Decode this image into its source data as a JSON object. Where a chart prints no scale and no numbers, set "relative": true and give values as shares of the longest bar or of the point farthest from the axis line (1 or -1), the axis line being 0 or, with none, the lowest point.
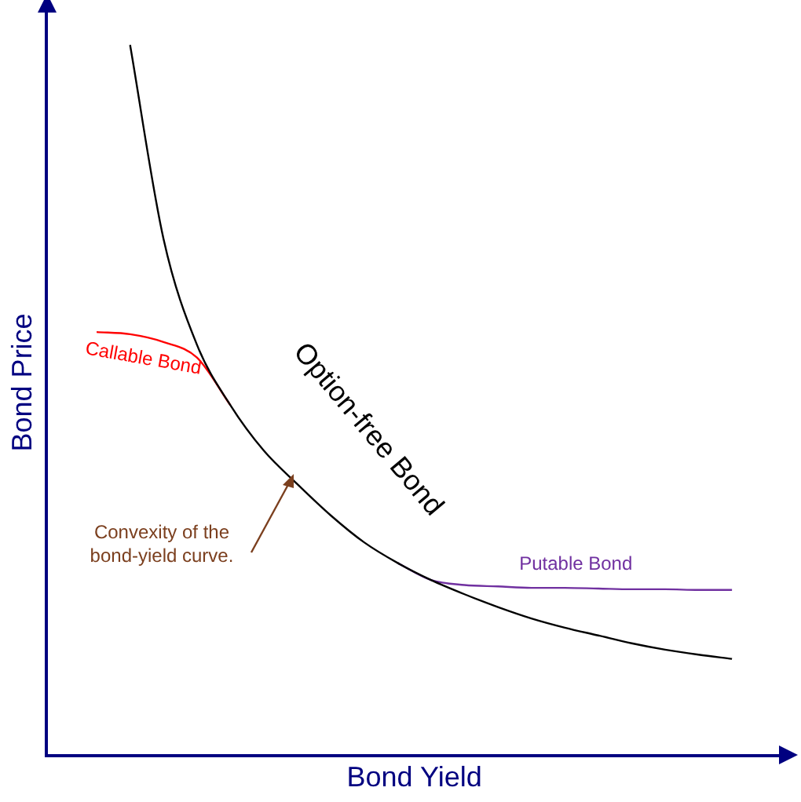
{
  "chart_data": {
    "type": "line",
    "relative": true,
    "xlabel": "Bond Yield",
    "ylabel": "Bond Price",
    "categories": [
      null,
      null,
      null,
      null,
      null,
      null,
      null,
      null,
      null,
      null,
      null,
      null,
      null,
      null,
      null,
      null,
      null,
      null,
      null,
      null,
      null,
      null
    ],
    "series": [
      {
        "name": "Option-free Bond",
        "color": "#000000",
        "values": [
          null,
          null,
          1.0,
          0.727,
          0.578,
          0.493,
          0.429,
          0.382,
          0.338,
          0.3,
          0.271,
          0.247,
          0.227,
          0.209,
          0.193,
          0.18,
          0.169,
          0.158,
          0.149,
          0.142,
          0.136,
          null
        ]
      },
      {
        "name": "Callable Bond",
        "color": "#ff0000",
        "values": [
          null,
          0.596,
          0.593,
          0.582,
          0.56,
          0.493,
          null,
          null,
          null,
          null,
          null,
          null,
          null,
          null,
          null,
          null,
          null,
          null,
          null,
          null,
          null,
          null
        ]
      },
      {
        "name": "Putable Bond",
        "color": "#7030a0",
        "values": [
          null,
          null,
          null,
          null,
          null,
          null,
          null,
          null,
          null,
          null,
          0.271,
          0.247,
          0.24,
          0.238,
          0.236,
          0.236,
          0.235,
          0.234,
          0.234,
          0.233,
          0.233,
          null
        ]
      }
    ],
    "annotations": [
      "Convexity of the bond-yield curve."
    ],
    "marker": "none",
    "grid": false,
    "legend": false
  }
}
